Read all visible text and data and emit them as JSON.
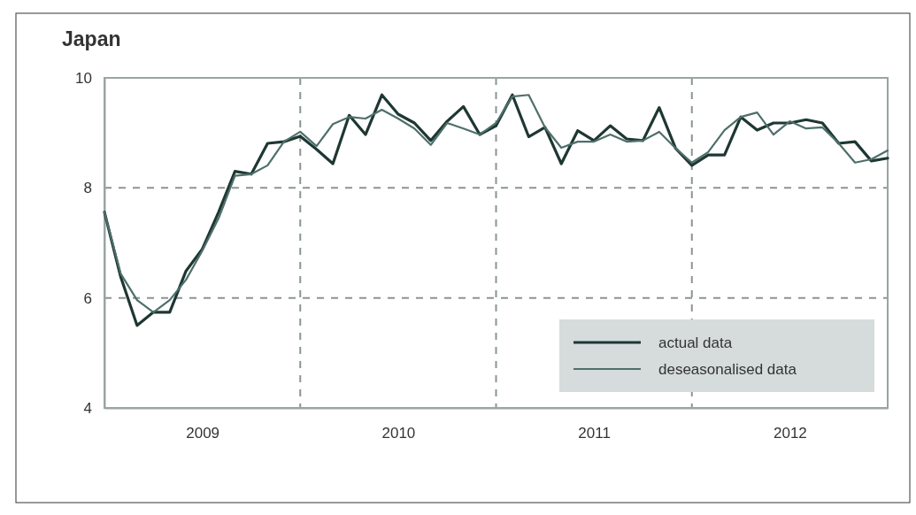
{
  "chart_data": {
    "type": "line",
    "title": "Japan",
    "x": [
      2009,
      2009.0833,
      2009.1667,
      2009.25,
      2009.3333,
      2009.4167,
      2009.5,
      2009.5833,
      2009.6667,
      2009.75,
      2009.8333,
      2009.9167,
      2010,
      2010.0833,
      2010.1667,
      2010.25,
      2010.3333,
      2010.4167,
      2010.5,
      2010.5833,
      2010.6667,
      2010.75,
      2010.8333,
      2010.9167,
      2011,
      2011.0833,
      2011.1667,
      2011.25,
      2011.3333,
      2011.4167,
      2011.5,
      2011.5833,
      2011.6667,
      2011.75,
      2011.8333,
      2011.9167,
      2012,
      2012.0833,
      2012.1667,
      2012.25,
      2012.3333,
      2012.4167,
      2012.5,
      2012.5833,
      2012.6667,
      2012.75,
      2012.8333,
      2012.9167,
      2013
    ],
    "series": [
      {
        "name": "actual data",
        "color": "#1e3733",
        "values": [
          7.56,
          6.38,
          5.5,
          5.74,
          5.74,
          6.49,
          6.89,
          7.56,
          8.3,
          8.25,
          8.81,
          8.84,
          8.94,
          8.7,
          8.44,
          9.32,
          8.97,
          9.69,
          9.34,
          9.18,
          8.86,
          9.21,
          9.48,
          8.97,
          9.13,
          9.69,
          8.93,
          9.1,
          8.44,
          9.04,
          8.86,
          9.13,
          8.89,
          8.86,
          9.46,
          8.72,
          8.41,
          8.6,
          8.6,
          9.29,
          9.05,
          9.18,
          9.18,
          9.24,
          9.18,
          8.81,
          8.84,
          8.49,
          8.54
        ]
      },
      {
        "name": "deseasonalised data",
        "color": "#4f6f6a",
        "values": [
          7.56,
          6.44,
          5.96,
          5.74,
          5.96,
          6.33,
          6.86,
          7.45,
          8.22,
          8.25,
          8.41,
          8.84,
          9.02,
          8.76,
          9.16,
          9.29,
          9.26,
          9.42,
          9.26,
          9.08,
          8.78,
          9.18,
          9.08,
          8.97,
          9.18,
          9.66,
          9.69,
          9.1,
          8.73,
          8.84,
          8.84,
          8.97,
          8.84,
          8.86,
          9.02,
          8.72,
          8.46,
          8.65,
          9.05,
          9.29,
          9.37,
          8.97,
          9.21,
          9.08,
          9.1,
          8.81,
          8.46,
          8.52,
          8.68
        ]
      }
    ],
    "xlim": [
      2009,
      2013
    ],
    "xticks": [
      {
        "value": 2009.5,
        "label": "2009"
      },
      {
        "value": 2010,
        "label": null
      },
      {
        "value": 2010.5,
        "label": "2010"
      },
      {
        "value": 2011,
        "label": null
      },
      {
        "value": 2011.5,
        "label": "2011"
      },
      {
        "value": 2012,
        "label": null
      },
      {
        "value": 2012.5,
        "label": "2012"
      }
    ],
    "ylim": [
      4,
      10
    ],
    "yticks": [
      4,
      6,
      8,
      10
    ],
    "grid": true,
    "legend": "bottom right",
    "marker": "none",
    "line_style": "solid"
  }
}
